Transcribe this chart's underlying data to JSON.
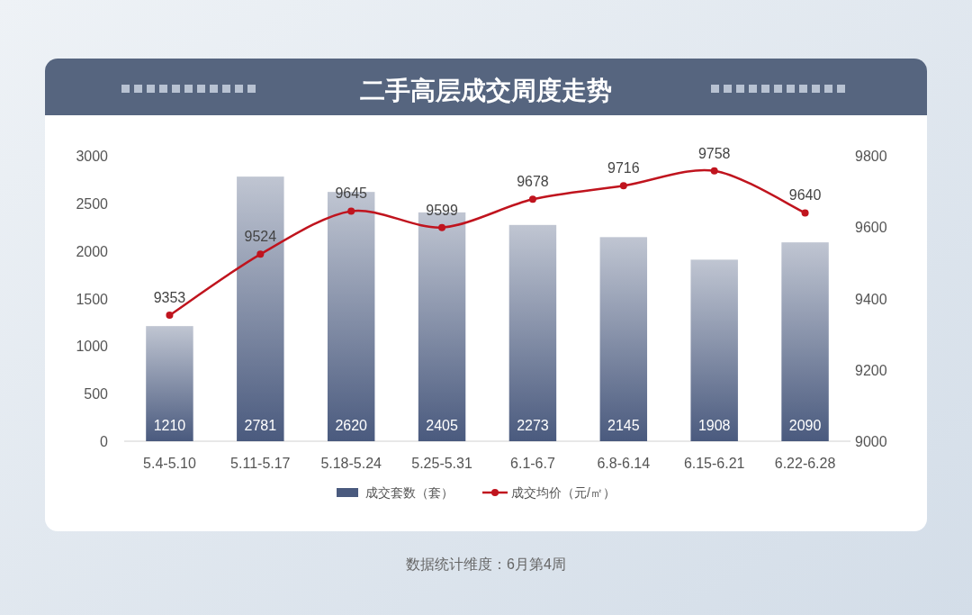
{
  "chart_data": {
    "type": "bar",
    "title": "二手高层成交周度走势",
    "categories": [
      "5.4-5.10",
      "5.11-5.17",
      "5.18-5.24",
      "5.25-5.31",
      "6.1-6.7",
      "6.8-6.14",
      "6.15-6.21",
      "6.22-6.28"
    ],
    "series": [
      {
        "name": "成交套数（套）",
        "color": "#4a5a7e",
        "values": [
          1210,
          2781,
          2620,
          2405,
          2273,
          2145,
          1908,
          2090
        ]
      },
      {
        "name": "成交均价（元/㎡）",
        "type": "line",
        "axis": "y2",
        "color": "#c0141e",
        "values": [
          9353,
          9524,
          9645,
          9599,
          9678,
          9716,
          9758,
          9640
        ]
      }
    ],
    "ylim": [
      0,
      3000
    ],
    "yticks": [
      0,
      500,
      1000,
      1500,
      2000,
      2500,
      3000
    ],
    "y2lim": [
      9000,
      9800
    ],
    "y2ticks": [
      9000,
      9200,
      9400,
      9600,
      9800
    ],
    "data_labels": true,
    "legend": "bottom",
    "marker": "circle",
    "grid": false,
    "annotations": [
      "数据统计维度：6月第4周"
    ]
  }
}
